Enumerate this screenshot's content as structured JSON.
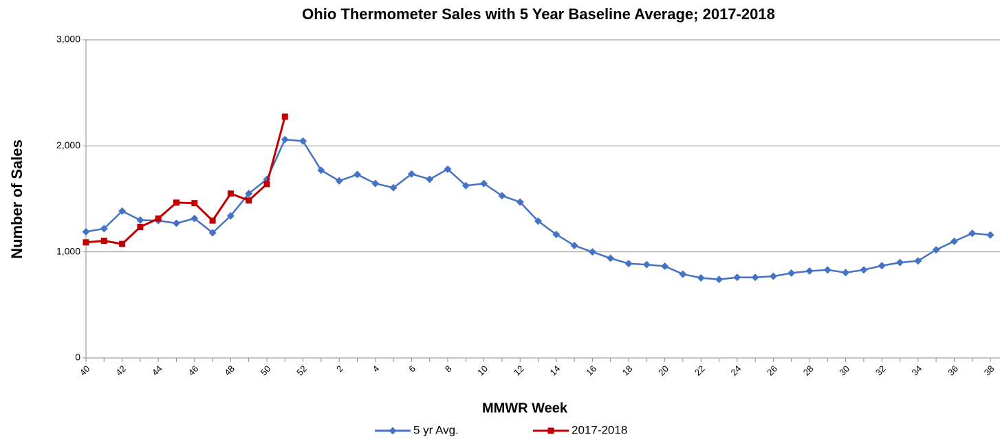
{
  "chart_data": {
    "type": "line",
    "title": "Ohio Thermometer Sales with 5 Year Baseline Average; 2017-2018",
    "x_label": "MMWR Week",
    "y_label": "Number of Sales",
    "categories": [
      "40",
      null,
      "42",
      null,
      "44",
      null,
      "46",
      null,
      "48",
      null,
      "50",
      null,
      "52",
      null,
      "2",
      null,
      "4",
      null,
      "6",
      null,
      "8",
      null,
      "10",
      null,
      "12",
      null,
      "14",
      null,
      "16",
      null,
      "18",
      null,
      "20",
      null,
      "22",
      null,
      "24",
      null,
      "26",
      null,
      "28",
      null,
      "30",
      null,
      "32",
      null,
      "34",
      null,
      "36",
      null,
      "38"
    ],
    "series": [
      {
        "name": "5 yr Avg.",
        "color": "#4472c4",
        "marker": "diamond",
        "values": [
          1190,
          1220,
          1385,
          1300,
          1295,
          1270,
          1315,
          1180,
          1340,
          1550,
          1685,
          2060,
          2045,
          1770,
          1670,
          1730,
          1645,
          1605,
          1735,
          1685,
          1780,
          1625,
          1645,
          1530,
          1470,
          1290,
          1165,
          1060,
          1000,
          940,
          890,
          880,
          865,
          790,
          755,
          740,
          760,
          760,
          770,
          800,
          820,
          830,
          805,
          830,
          870,
          900,
          915,
          1020,
          1100,
          1175,
          1160
        ]
      },
      {
        "name": "2017-2018",
        "color": "#c00000",
        "marker": "square",
        "values": [
          1090,
          1105,
          1075,
          1235,
          1315,
          1465,
          1460,
          1295,
          1550,
          1485,
          1640,
          2275,
          null,
          null,
          null,
          null,
          null,
          null,
          null,
          null,
          null,
          null,
          null,
          null,
          null,
          null,
          null,
          null,
          null,
          null,
          null,
          null,
          null,
          null,
          null,
          null,
          null,
          null,
          null,
          null,
          null,
          null,
          null,
          null,
          null,
          null,
          null,
          null,
          null,
          null,
          null
        ]
      }
    ],
    "ylim": [
      0,
      3000
    ],
    "yticks": [
      0,
      {
        "value": 1000,
        "label": "1,000"
      },
      {
        "value": 2000,
        "label": "2,000"
      },
      {
        "value": 3000,
        "label": "3,000"
      }
    ],
    "grid": true,
    "legend": "bottom"
  }
}
